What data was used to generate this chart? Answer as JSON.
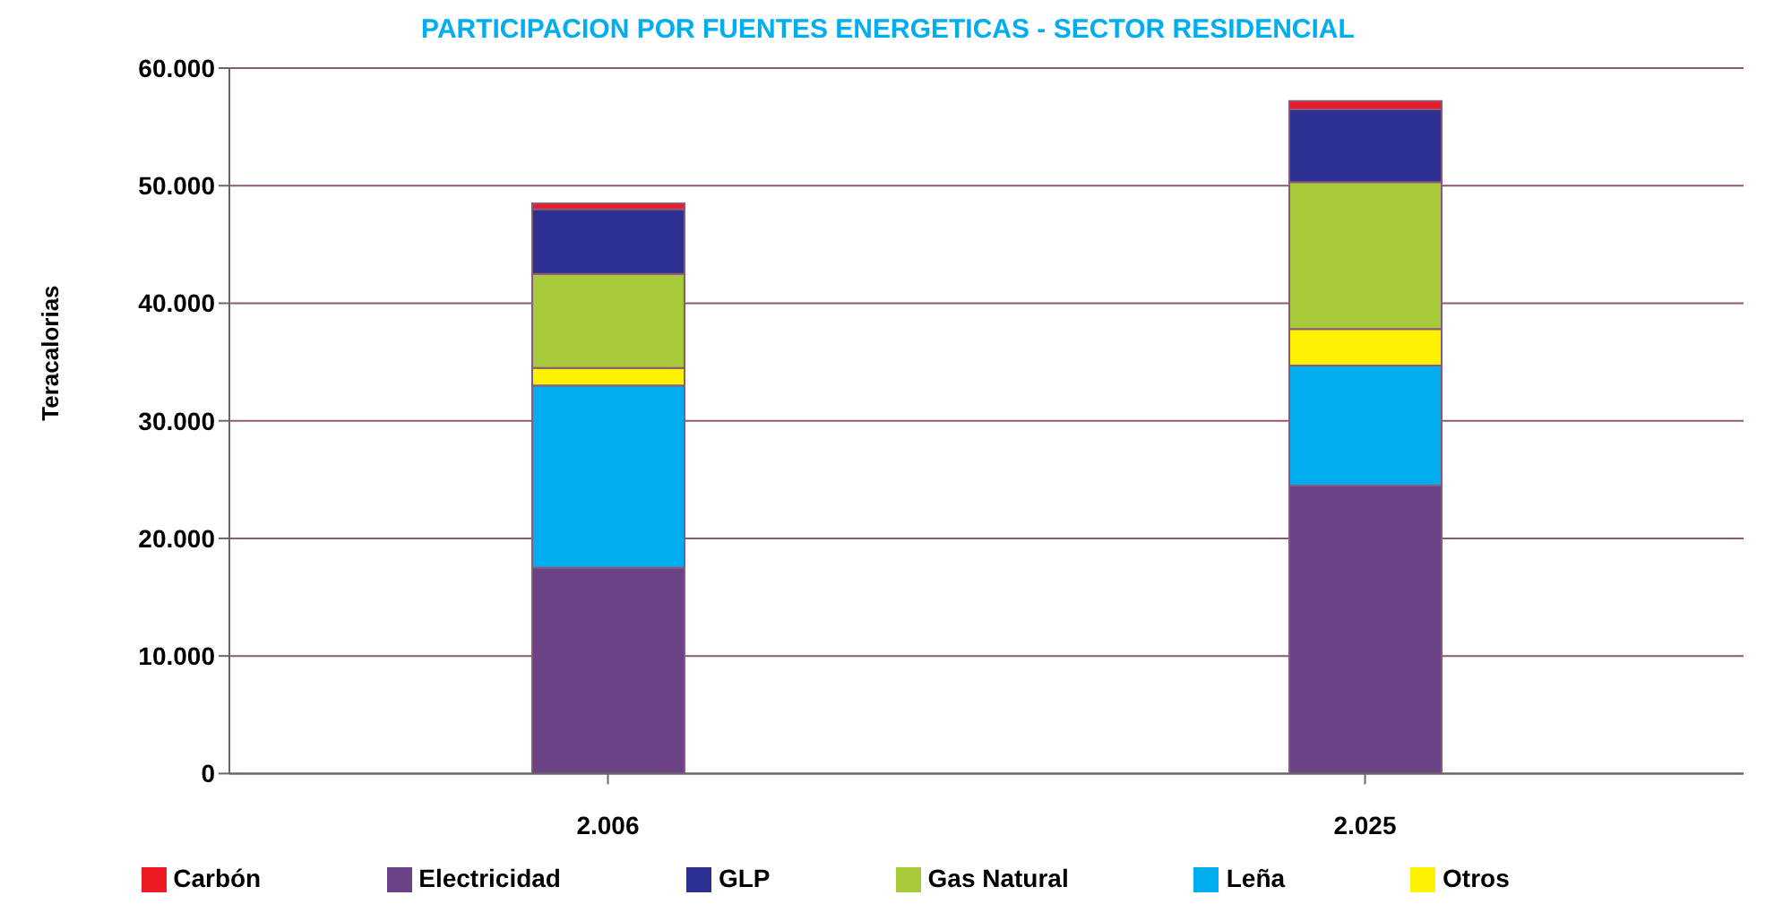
{
  "chart_data": {
    "type": "bar",
    "title": "PARTICIPACION POR FUENTES ENERGETICAS - SECTOR RESIDENCIAL",
    "ylabel": "Teracalorias",
    "categories": [
      "2.006",
      "2.025"
    ],
    "stacked": true,
    "series": [
      {
        "name": "Electricidad",
        "color": "#6a4285",
        "values": [
          17500,
          24500
        ]
      },
      {
        "name": "Leña",
        "color": "#00adef",
        "values": [
          15500,
          10200
        ]
      },
      {
        "name": "Otros",
        "color": "#fff200",
        "values": [
          1500,
          3100
        ]
      },
      {
        "name": "Gas Natural",
        "color": "#a6ca3a",
        "values": [
          8000,
          12500
        ]
      },
      {
        "name": "GLP",
        "color": "#2e3192",
        "values": [
          5500,
          6200
        ]
      },
      {
        "name": "Carbón",
        "color": "#ed1c24",
        "values": [
          500,
          700
        ]
      }
    ],
    "ylim": [
      0,
      60000
    ],
    "yticks": [
      {
        "value": 0,
        "label": "0"
      },
      {
        "value": 10000,
        "label": "10.000"
      },
      {
        "value": 20000,
        "label": "20.000"
      },
      {
        "value": 30000,
        "label": "30.000"
      },
      {
        "value": 40000,
        "label": "40.000"
      },
      {
        "value": 50000,
        "label": "50.000"
      },
      {
        "value": 60000,
        "label": "60.000"
      }
    ],
    "grid": "y",
    "legend": "bottom"
  }
}
